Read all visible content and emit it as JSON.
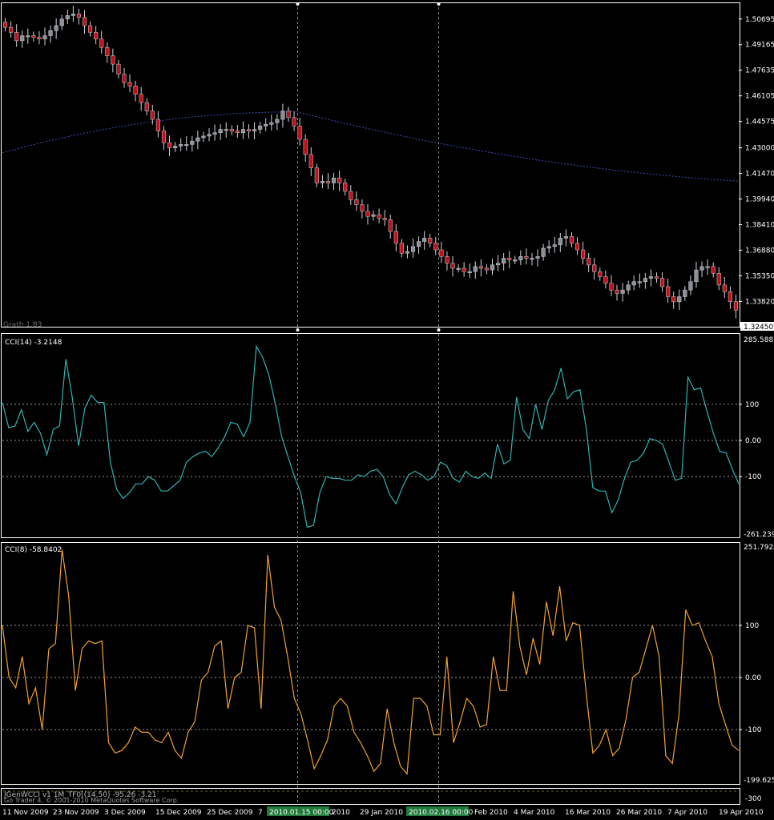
{
  "colors": {
    "background": "#000000",
    "frame": "#ffffff",
    "bull_candle": "#8a8f96",
    "bear_candle": "#c0101a",
    "moving_average": "#3b4fb0",
    "cci14": "#2fb3b0",
    "cci8": "#f2a130",
    "crosshair": "#7a8a7a",
    "date_badge": "#1f7a3a"
  },
  "price_panel": {
    "watermark": "Grath 1.83",
    "price_ticks": [
      "1.50695",
      "1.49165",
      "1.47635",
      "1.46105",
      "1.44575",
      "1.43000",
      "1.41470",
      "1.39940",
      "1.38410",
      "1.36880",
      "1.35350",
      "1.33820"
    ],
    "current_price": "1.32450"
  },
  "cci14_panel": {
    "label": "CCI(14) -3.2148",
    "max_label": "285.5881",
    "min_label": "-261.2395",
    "ticks": [
      "100",
      "0.00",
      "-100"
    ]
  },
  "cci8_panel": {
    "label": "CCI(8) -58.8402",
    "max_label": "251.7924",
    "min_label": "-199.6252",
    "ticks": [
      "100",
      "0.00",
      "-100"
    ]
  },
  "status_panel": {
    "line1": "JGenWCCI v1 1M_TF0[(14,50)  -95.26 -3.21",
    "line2": "Go Trader 4, © 2001-2010 MetaQuotes Software Corp.",
    "right_label": "-300"
  },
  "time_axis": {
    "labels": [
      "11 Nov 2009",
      "23 Nov 2009",
      "3 Dec 2009",
      "15 Dec 2009",
      "25 Dec 2009",
      "7",
      "2010",
      "29 Jan 2010",
      "Feb 2010",
      "4 Mar 2010",
      "16 Mar 2010",
      "26 Mar 2010",
      "7 Apr 2010",
      "19 Apr 2010"
    ],
    "cursor_dates": [
      "2010.01.15 00:00",
      "2010.02.16 00:00"
    ]
  },
  "chart_data": [
    {
      "type": "candlestick",
      "title": "",
      "symbol": "",
      "ylim": [
        1.3245,
        1.5145
      ],
      "x_range": [
        "11 Nov 2009",
        "23 Apr 2010"
      ],
      "moving_average": {
        "from": 1.427,
        "peak": 1.4515,
        "to": 1.41
      },
      "close_series": [
        1.502,
        1.499,
        1.494,
        1.497,
        1.497,
        1.496,
        1.495,
        1.497,
        1.5,
        1.503,
        1.507,
        1.509,
        1.51,
        1.508,
        1.503,
        1.499,
        1.495,
        1.49,
        1.485,
        1.48,
        1.474,
        1.469,
        1.467,
        1.462,
        1.457,
        1.452,
        1.447,
        1.44,
        1.433,
        1.43,
        1.431,
        1.432,
        1.432,
        1.434,
        1.436,
        1.437,
        1.438,
        1.439,
        1.441,
        1.441,
        1.44,
        1.439,
        1.441,
        1.44,
        1.441,
        1.443,
        1.444,
        1.445,
        1.447,
        1.452,
        1.448,
        1.443,
        1.435,
        1.426,
        1.418,
        1.409,
        1.41,
        1.409,
        1.412,
        1.409,
        1.404,
        1.399,
        1.396,
        1.392,
        1.389,
        1.39,
        1.388,
        1.387,
        1.38,
        1.373,
        1.367,
        1.368,
        1.371,
        1.374,
        1.376,
        1.373,
        1.369,
        1.365,
        1.361,
        1.358,
        1.358,
        1.356,
        1.356,
        1.359,
        1.358,
        1.357,
        1.36,
        1.361,
        1.364,
        1.363,
        1.363,
        1.365,
        1.364,
        1.364,
        1.365,
        1.37,
        1.371,
        1.372,
        1.376,
        1.377,
        1.373,
        1.369,
        1.364,
        1.36,
        1.356,
        1.353,
        1.349,
        1.345,
        1.343,
        1.345,
        1.348,
        1.35,
        1.35,
        1.352,
        1.353,
        1.352,
        1.347,
        1.341,
        1.338,
        1.341,
        1.345,
        1.35,
        1.357,
        1.359,
        1.359,
        1.355,
        1.348,
        1.344,
        1.338,
        1.333
      ]
    },
    {
      "type": "line",
      "title": "CCI(14) -3.2148",
      "ylim": [
        -261.2395,
        285.5881
      ],
      "levels": [
        100,
        0,
        -100
      ],
      "values": [
        105,
        35,
        40,
        85,
        25,
        50,
        20,
        -40,
        30,
        40,
        225,
        120,
        -15,
        90,
        125,
        105,
        105,
        -60,
        -135,
        -160,
        -145,
        -120,
        -120,
        -100,
        -110,
        -140,
        -140,
        -125,
        -110,
        -60,
        -45,
        -35,
        -30,
        -45,
        -20,
        10,
        50,
        45,
        10,
        50,
        260,
        230,
        180,
        100,
        10,
        -45,
        -100,
        -145,
        -240,
        -235,
        -145,
        -100,
        -105,
        -105,
        -110,
        -110,
        -95,
        -100,
        -85,
        -80,
        -100,
        -150,
        -175,
        -130,
        -95,
        -85,
        -95,
        -110,
        -100,
        -60,
        -70,
        -105,
        -115,
        -85,
        -100,
        -105,
        -90,
        -105,
        -10,
        -65,
        -55,
        120,
        30,
        5,
        100,
        30,
        110,
        140,
        200,
        115,
        135,
        140,
        30,
        -130,
        -140,
        -140,
        -200,
        -165,
        -105,
        -60,
        -55,
        -35,
        5,
        0,
        -10,
        -60,
        -110,
        -105,
        175,
        140,
        145,
        80,
        20,
        -30,
        -35,
        -80,
        -120
      ]
    },
    {
      "type": "line",
      "title": "CCI(8) -58.8402",
      "ylim": [
        -199.6252,
        251.7924
      ],
      "levels": [
        100,
        0,
        -100
      ],
      "values": [
        100,
        0,
        -20,
        40,
        -50,
        -20,
        -100,
        55,
        65,
        245,
        155,
        -25,
        55,
        70,
        65,
        70,
        -125,
        -145,
        -140,
        -125,
        -95,
        -105,
        -105,
        -120,
        -125,
        -105,
        -140,
        -155,
        -105,
        -85,
        -5,
        10,
        60,
        70,
        -60,
        0,
        10,
        100,
        95,
        -60,
        235,
        135,
        110,
        40,
        -40,
        -70,
        -120,
        -175,
        -150,
        -120,
        -55,
        -40,
        -55,
        -105,
        -125,
        -150,
        -180,
        -165,
        -60,
        -125,
        -170,
        -185,
        -40,
        -40,
        -55,
        -110,
        -110,
        40,
        -125,
        -85,
        -40,
        -55,
        -95,
        -90,
        40,
        -25,
        -25,
        165,
        60,
        5,
        75,
        25,
        145,
        80,
        175,
        70,
        105,
        100,
        -30,
        -145,
        -130,
        -100,
        -150,
        -135,
        -80,
        0,
        10,
        55,
        100,
        40,
        -150,
        -165,
        -70,
        130,
        100,
        105,
        70,
        40,
        -50,
        -90,
        -130,
        -140
      ]
    }
  ]
}
